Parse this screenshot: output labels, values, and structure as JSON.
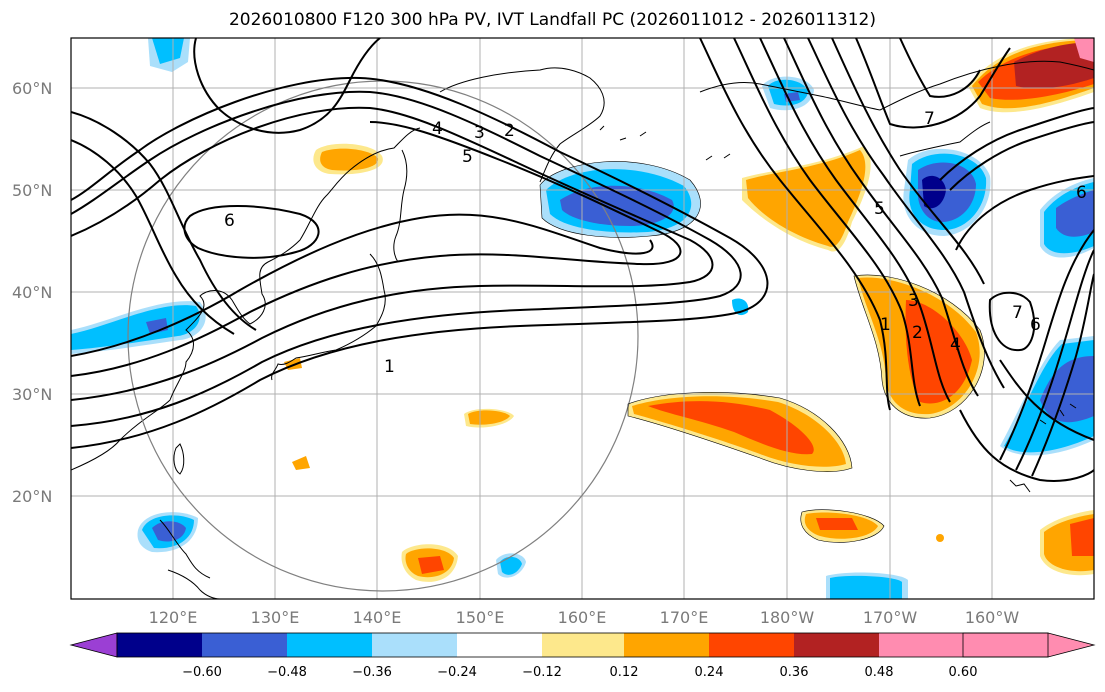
{
  "title": "2026010800 F120 300 hPa PV, IVT Landfall PC (2026011012 - 2026011312)",
  "lat_labels": [
    "60°N",
    "50°N",
    "40°N",
    "30°N",
    "20°N"
  ],
  "lon_labels": [
    "120°E",
    "130°E",
    "140°E",
    "150°E",
    "160°E",
    "170°E",
    "180°W",
    "170°W",
    "160°W"
  ],
  "colorbar": {
    "colors": [
      "#9b3fd4",
      "#00008b",
      "#3a5fd4",
      "#00bfff",
      "#aadffb",
      "#ffffff",
      "#fde88c",
      "#ffa500",
      "#ff4500",
      "#b22222",
      "#ff8cb0"
    ],
    "tick_labels": [
      "−0.60",
      "−0.48",
      "−0.36",
      "−0.24",
      "−0.12",
      "0.12",
      "0.24",
      "0.36",
      "0.48",
      "0.60"
    ]
  },
  "contour_labels": [
    "1",
    "2",
    "3",
    "4",
    "5",
    "6",
    "7"
  ]
}
